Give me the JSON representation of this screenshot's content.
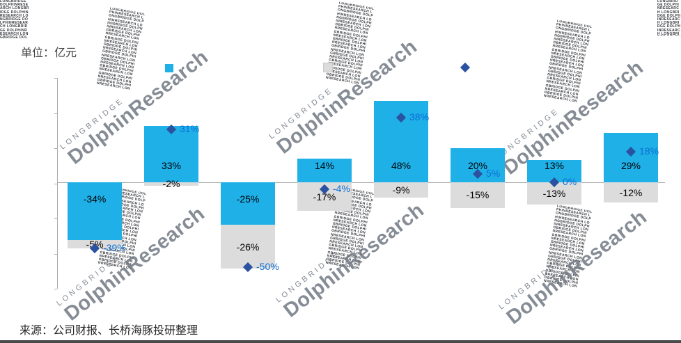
{
  "unit_label": "单位：亿元",
  "source_text": "来源：公司财报、长桥海豚投研整理",
  "watermark": {
    "brand_small": "LONGBRIDGE",
    "brand_large": "DolphinResearch"
  },
  "colors": {
    "cyan_bar": "#1FB0E8",
    "gray_bar": "#DCDCDC",
    "diamond": "#2A52A0",
    "diamond_label": "#0C6ED4",
    "axis": "#ABABAB"
  },
  "legend": {
    "markers": [
      "cyan-square",
      "gray-square",
      "blue-diamond"
    ]
  },
  "chart_data": {
    "type": "bar",
    "subtype": "stacked bars with diamond markers",
    "title": "",
    "xlabel": "",
    "ylabel": "单位：亿元",
    "categories": [
      "",
      "",
      "",
      "",
      "",
      "",
      "",
      ""
    ],
    "category_labels_visible": false,
    "axis_value_labels_visible": false,
    "ylim": [
      -62,
      62
    ],
    "grid": false,
    "series": [
      {
        "name": "cyan_bars",
        "values": [
          -34,
          33,
          -25,
          14,
          48,
          20,
          13,
          29
        ],
        "labels": [
          "-34%",
          "33%",
          "-25%",
          "14%",
          "48%",
          "20%",
          "13%",
          "29%"
        ]
      },
      {
        "name": "gray_bars",
        "values": [
          -5,
          -2,
          -26,
          -17,
          -9,
          -15,
          -13,
          -12
        ],
        "labels": [
          "-5%",
          "-2%",
          "-26%",
          "-17%",
          "-9%",
          "-15%",
          "-13%",
          "-12%"
        ]
      },
      {
        "name": "diamond_markers",
        "values": [
          -39,
          31,
          -50,
          -4,
          38,
          5,
          0,
          18
        ],
        "labels": [
          "-39%",
          "31%",
          "-50%",
          "-4%",
          "38%",
          "5%",
          "0%",
          "18%"
        ]
      }
    ]
  }
}
